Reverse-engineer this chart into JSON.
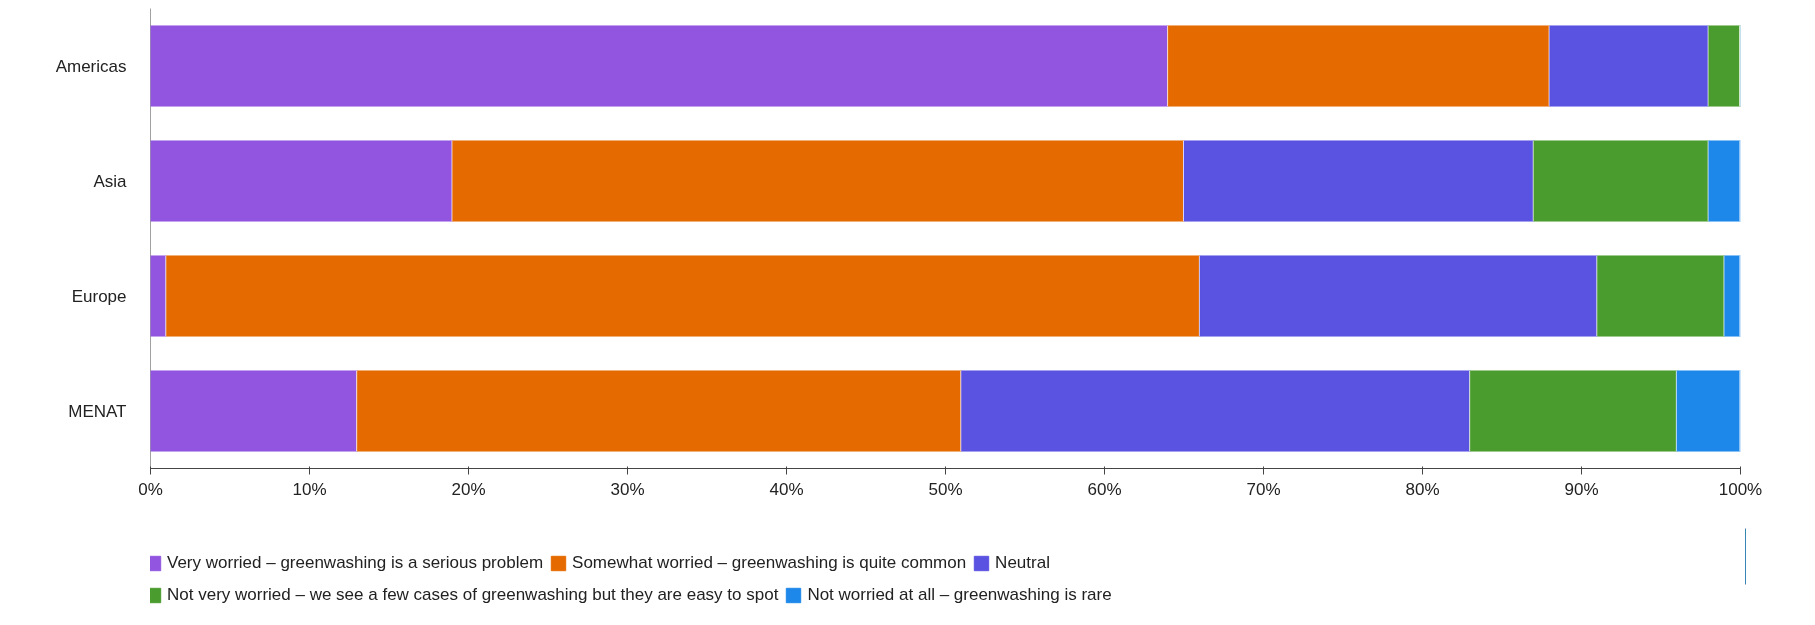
{
  "chart_data": {
    "type": "bar",
    "orientation": "horizontal",
    "stacked": true,
    "categories": [
      "Americas",
      "Asia",
      "Europe",
      "MENAT"
    ],
    "xlim": [
      0,
      100
    ],
    "xticks": [
      {
        "value": 0,
        "label": "0%"
      },
      {
        "value": 10,
        "label": "10%"
      },
      {
        "value": 20,
        "label": "20%"
      },
      {
        "value": 30,
        "label": "30%"
      },
      {
        "value": 40,
        "label": "40%"
      },
      {
        "value": 50,
        "label": "50%"
      },
      {
        "value": 60,
        "label": "60%"
      },
      {
        "value": 70,
        "label": "70%"
      },
      {
        "value": 80,
        "label": "80%"
      },
      {
        "value": 90,
        "label": "90%"
      },
      {
        "value": 100,
        "label": "100%"
      }
    ],
    "grid": false,
    "legend": "bottom",
    "series": [
      {
        "name": "Very worried – greenwashing is a serious problem",
        "color": "#9155e0",
        "values": [
          64,
          19,
          1,
          13
        ]
      },
      {
        "name": "Somewhat worried – greenwashing is quite common",
        "color": "#e56b00",
        "values": [
          24,
          46,
          65,
          38
        ]
      },
      {
        "name": "Neutral",
        "color": "#5a52e0",
        "values": [
          10,
          22,
          25,
          32
        ]
      },
      {
        "name": "Not very worried – we see a few cases of greenwashing but they are easy to spot",
        "color": "#4b9c2e",
        "values": [
          2,
          11,
          8,
          13
        ]
      },
      {
        "name": "Not worried at all – greenwashing is rare",
        "color": "#1e88ea",
        "values": [
          0,
          2,
          1,
          4
        ]
      }
    ]
  }
}
